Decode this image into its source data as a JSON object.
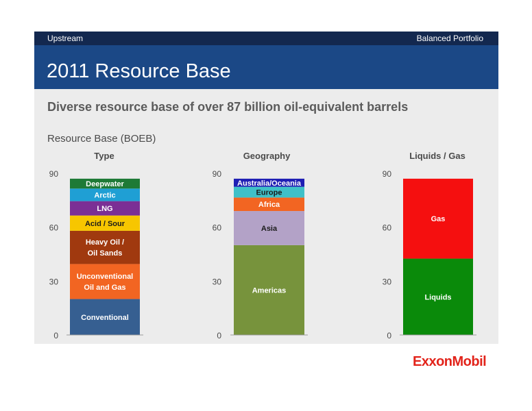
{
  "header": {
    "section": "Upstream",
    "tag": "Balanced Portfolio"
  },
  "title": "2011 Resource Base",
  "subtitle": "Diverse resource base of over 87 billion oil-equivalent barrels",
  "caption": "Resource Base (BOEB)",
  "logo": "ExxonMobil",
  "chart_data": [
    {
      "type": "bar",
      "stacked": true,
      "title": "Type",
      "ylim": [
        0,
        90
      ],
      "yticks": [
        0,
        30,
        60,
        90
      ],
      "grid": false,
      "segments": [
        {
          "label": [
            "Conventional"
          ],
          "value": 20,
          "color": "#365f91"
        },
        {
          "label": [
            "Unconventional",
            "Oil and Gas"
          ],
          "value": 19.5,
          "color": "#f26522"
        },
        {
          "label": [
            "Heavy Oil /",
            "Oil Sands"
          ],
          "value": 18.5,
          "color": "#a0390f"
        },
        {
          "label": [
            "Acid / Sour"
          ],
          "value": 8.5,
          "color": "#f7c600"
        },
        {
          "label": [
            "LNG"
          ],
          "value": 8,
          "color": "#7b2f95"
        },
        {
          "label": [
            "Arctic"
          ],
          "value": 7,
          "color": "#1f9fd4"
        },
        {
          "label": [
            "Deepwater"
          ],
          "value": 5.5,
          "color": "#1e7a36"
        }
      ]
    },
    {
      "type": "bar",
      "stacked": true,
      "title": "Geography",
      "ylim": [
        0,
        90
      ],
      "yticks": [
        0,
        30,
        60,
        90
      ],
      "grid": false,
      "segments": [
        {
          "label": [
            "Americas"
          ],
          "value": 50,
          "color": "#77933c"
        },
        {
          "label": [
            "Asia"
          ],
          "value": 19,
          "color": "#b3a2c7"
        },
        {
          "label": [
            "Africa"
          ],
          "value": 7.5,
          "color": "#f26522"
        },
        {
          "label": [
            "Europe"
          ],
          "value": 6,
          "color": "#3fc0c8"
        },
        {
          "label": [
            "Australia/Oceania"
          ],
          "value": 4.5,
          "color": "#1f1fb4"
        }
      ]
    },
    {
      "type": "bar",
      "stacked": true,
      "title": "Liquids / Gas",
      "ylim": [
        0,
        90
      ],
      "yticks": [
        0,
        30,
        60,
        90
      ],
      "grid": false,
      "segments": [
        {
          "label": [
            "Liquids"
          ],
          "value": 42.5,
          "color": "#0a8a0a"
        },
        {
          "label": [
            "Gas"
          ],
          "value": 44.5,
          "color": "#f50f0f"
        }
      ]
    }
  ]
}
